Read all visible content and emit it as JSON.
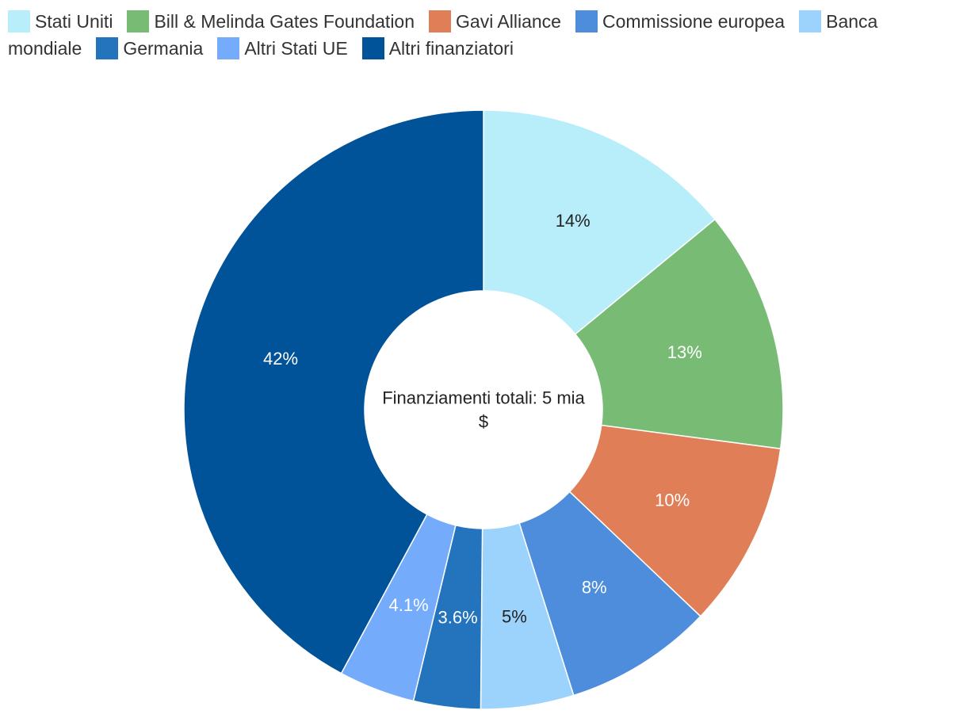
{
  "chart_data": {
    "type": "pie",
    "center_label": [
      "Finanziamenti totali: 5 mia",
      "$"
    ],
    "slices": [
      {
        "name": "Stati Uniti",
        "value": 14,
        "label": "14%",
        "color": "#b8eefa",
        "label_color": "#222222"
      },
      {
        "name": "Bill & Melinda Gates Foundation",
        "value": 13,
        "label": "13%",
        "color": "#78bb75",
        "label_color": "#ffffff"
      },
      {
        "name": "Gavi Alliance",
        "value": 10,
        "label": "10%",
        "color": "#e07f57",
        "label_color": "#ffffff"
      },
      {
        "name": "Commissione europea",
        "value": 8,
        "label": "8%",
        "color": "#4d8ddc",
        "label_color": "#ffffff"
      },
      {
        "name": "Banca mondiale",
        "value": 5,
        "label": "5%",
        "color": "#9bd3fd",
        "label_color": "#222222"
      },
      {
        "name": "Germania",
        "value": 3.6,
        "label": "3.6%",
        "color": "#2373bd",
        "label_color": "#ffffff"
      },
      {
        "name": "Altri Stati UE",
        "value": 4.1,
        "label": "4.1%",
        "color": "#74acfb",
        "label_color": "#ffffff"
      },
      {
        "name": "Altri finanziatori",
        "value": 42,
        "label": "42%",
        "color": "#005398",
        "label_color": "#ffffff"
      }
    ]
  }
}
